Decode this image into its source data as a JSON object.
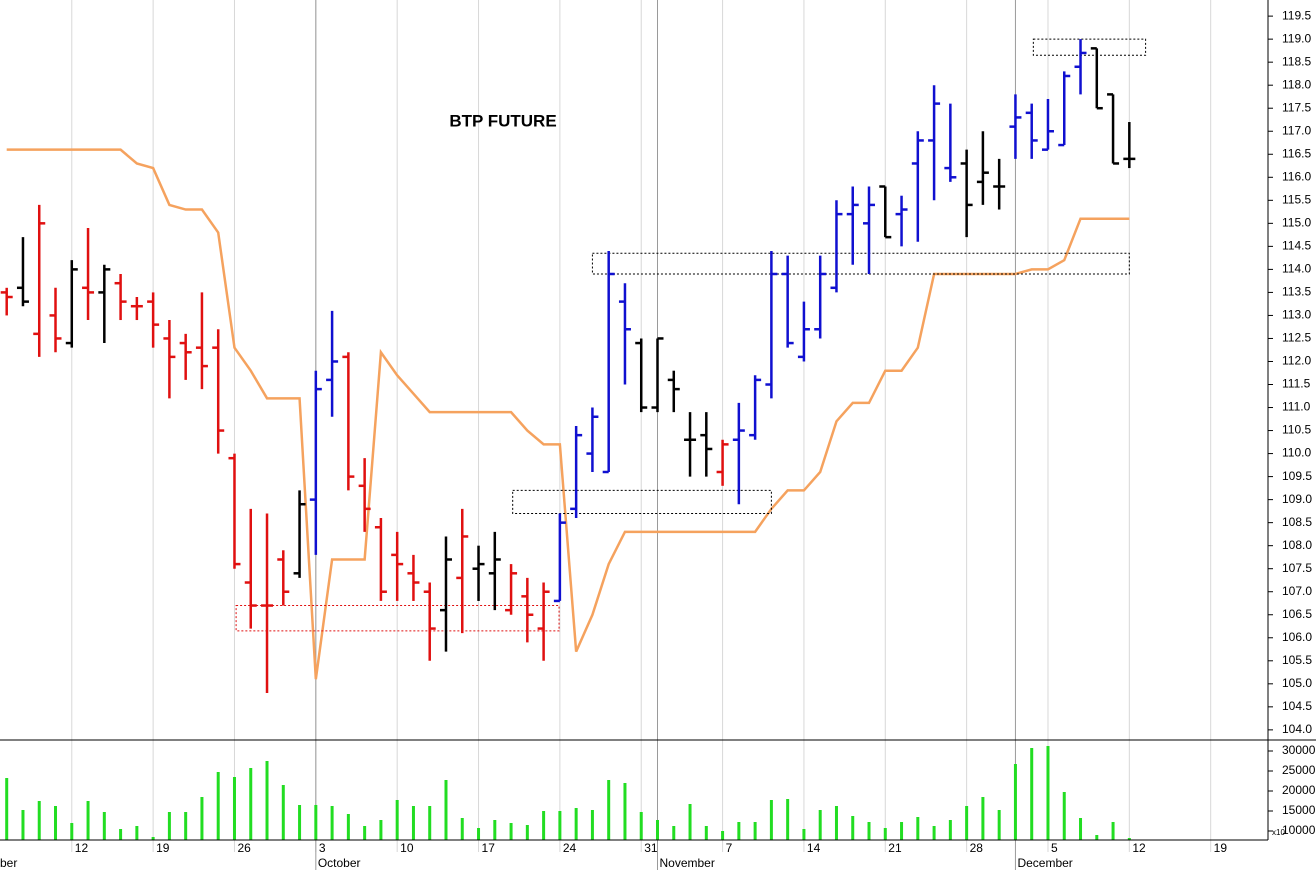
{
  "chart_data": [
    {
      "type": "ohlc",
      "title": "BTP FUTURE",
      "ylim": [
        103.78,
        119.85
      ],
      "yticks": [
        {
          "value": 104,
          "label": "104.0"
        },
        104.5,
        {
          "value": 105,
          "label": "105.0"
        },
        105.5,
        {
          "value": 106,
          "label": "106.0"
        },
        106.5,
        {
          "value": 107,
          "label": "107.0"
        },
        107.5,
        {
          "value": 108,
          "label": "108.0"
        },
        108.5,
        {
          "value": 109,
          "label": "109.0"
        },
        109.5,
        {
          "value": 110,
          "label": "110.0"
        },
        110.5,
        {
          "value": 111,
          "label": "111.0"
        },
        111.5,
        {
          "value": 112,
          "label": "112.0"
        },
        112.5,
        {
          "value": 113,
          "label": "113.0"
        },
        113.5,
        {
          "value": 114,
          "label": "114.0"
        },
        114.5,
        {
          "value": 115,
          "label": "115.0"
        },
        115.5,
        {
          "value": 116,
          "label": "116.0"
        },
        116.5,
        {
          "value": 117,
          "label": "117.0"
        },
        117.5,
        {
          "value": 118,
          "label": "118.0"
        },
        118.5,
        {
          "value": 119,
          "label": "119.0"
        },
        119.5
      ],
      "open": [
        113.5,
        113.6,
        112.6,
        113.0,
        112.4,
        113.6,
        113.5,
        113.7,
        113.2,
        113.3,
        112.5,
        112.4,
        112.3,
        112.3,
        109.9,
        107.2,
        106.7,
        107.7,
        107.4,
        109.0,
        111.6,
        112.1,
        109.3,
        108.4,
        107.8,
        107.4,
        107.0,
        106.6,
        107.3,
        107.5,
        107.4,
        106.6,
        106.9,
        106.2,
        106.8,
        108.8,
        110.0,
        109.6,
        113.3,
        112.4,
        111.0,
        111.6,
        110.3,
        110.4,
        109.6,
        110.3,
        110.4,
        111.5,
        113.9,
        112.1,
        112.7,
        113.6,
        115.2,
        115.0,
        115.8,
        115.2,
        116.3,
        116.8,
        116.2,
        116.3,
        115.9,
        115.8,
        117.1,
        117.4,
        116.6,
        116.7,
        118.4,
        118.8,
        117.8,
        116.4
      ],
      "high": [
        113.6,
        114.7,
        115.4,
        113.6,
        114.2,
        114.9,
        114.1,
        113.9,
        113.4,
        113.5,
        112.9,
        112.6,
        113.5,
        112.7,
        110.0,
        108.8,
        108.7,
        107.9,
        109.2,
        111.8,
        113.1,
        112.2,
        109.9,
        108.6,
        108.3,
        107.8,
        107.2,
        108.2,
        108.8,
        108.0,
        108.3,
        107.6,
        107.3,
        107.2,
        108.7,
        110.6,
        111.0,
        114.4,
        113.7,
        112.5,
        112.5,
        111.8,
        110.9,
        110.9,
        110.3,
        111.1,
        111.7,
        114.4,
        114.3,
        113.3,
        114.3,
        115.5,
        115.8,
        115.8,
        115.8,
        115.6,
        117.0,
        118.0,
        117.6,
        116.6,
        117.0,
        116.4,
        117.8,
        117.6,
        117.7,
        118.3,
        119.0,
        118.8,
        117.8,
        117.2
      ],
      "low": [
        113.0,
        113.2,
        112.1,
        112.2,
        112.3,
        112.9,
        112.4,
        112.9,
        112.9,
        112.3,
        111.2,
        111.6,
        111.4,
        110.0,
        107.5,
        106.2,
        104.8,
        106.7,
        107.3,
        107.8,
        110.8,
        109.2,
        108.3,
        106.8,
        106.8,
        106.8,
        105.5,
        105.7,
        106.1,
        106.8,
        106.6,
        106.5,
        105.9,
        105.5,
        106.8,
        108.6,
        109.6,
        109.6,
        111.5,
        110.9,
        110.9,
        110.9,
        109.5,
        109.5,
        109.3,
        108.9,
        110.3,
        111.2,
        112.3,
        112.0,
        112.5,
        113.5,
        114.1,
        113.9,
        114.7,
        114.5,
        114.6,
        115.5,
        115.9,
        114.7,
        115.4,
        115.3,
        116.4,
        116.4,
        116.6,
        116.7,
        117.8,
        117.5,
        116.3,
        116.2
      ],
      "close": [
        113.4,
        113.3,
        115.0,
        112.5,
        114.0,
        113.5,
        114.0,
        113.3,
        113.2,
        112.8,
        112.1,
        112.2,
        111.9,
        110.5,
        107.6,
        106.7,
        106.7,
        107.0,
        108.9,
        111.4,
        112.0,
        109.5,
        108.8,
        107.0,
        107.6,
        107.2,
        106.2,
        107.7,
        108.2,
        107.6,
        107.7,
        107.4,
        106.5,
        107.0,
        108.5,
        110.4,
        110.8,
        113.9,
        112.7,
        111.0,
        112.5,
        111.4,
        110.3,
        110.1,
        110.2,
        110.5,
        111.6,
        113.9,
        112.4,
        112.7,
        113.9,
        115.2,
        115.4,
        115.4,
        114.7,
        115.3,
        116.8,
        117.6,
        116.0,
        115.4,
        116.1,
        115.8,
        117.3,
        116.8,
        117.0,
        118.2,
        118.7,
        117.5,
        116.3,
        116.4
      ],
      "bar_colors": [
        "#e01010",
        "#000000",
        "#e01010",
        "#e01010",
        "#000000",
        "#e01010",
        "#000000",
        "#e01010",
        "#e01010",
        "#e01010",
        "#e01010",
        "#e01010",
        "#e01010",
        "#e01010",
        "#e01010",
        "#e01010",
        "#e01010",
        "#e01010",
        "#000000",
        "#1010d0",
        "#1010d0",
        "#e01010",
        "#e01010",
        "#e01010",
        "#e01010",
        "#e01010",
        "#e01010",
        "#000000",
        "#e01010",
        "#000000",
        "#000000",
        "#e01010",
        "#e01010",
        "#e01010",
        "#1010d0",
        "#1010d0",
        "#1010d0",
        "#1010d0",
        "#1010d0",
        "#000000",
        "#000000",
        "#000000",
        "#000000",
        "#000000",
        "#e01010",
        "#1010d0",
        "#1010d0",
        "#1010d0",
        "#1010d0",
        "#1010d0",
        "#1010d0",
        "#1010d0",
        "#1010d0",
        "#1010d0",
        "#000000",
        "#1010d0",
        "#1010d0",
        "#1010d0",
        "#1010d0",
        "#000000",
        "#000000",
        "#000000",
        "#1010d0",
        "#1010d0",
        "#1010d0",
        "#1010d0",
        "#1010d0",
        "#000000",
        "#000000",
        "#000000"
      ],
      "line": {
        "color": "#f5a25e",
        "values": [
          116.6,
          116.6,
          116.6,
          116.6,
          116.6,
          116.6,
          116.6,
          116.6,
          116.3,
          116.2,
          115.4,
          115.3,
          115.3,
          114.8,
          112.3,
          111.8,
          111.2,
          111.2,
          111.2,
          105.1,
          107.7,
          107.7,
          107.7,
          112.2,
          111.7,
          111.3,
          110.9,
          110.9,
          110.9,
          110.9,
          110.9,
          110.9,
          110.5,
          110.2,
          110.2,
          105.7,
          106.5,
          107.6,
          108.3,
          108.3,
          108.3,
          108.3,
          108.3,
          108.3,
          108.3,
          108.3,
          108.3,
          108.8,
          109.2,
          109.2,
          109.6,
          110.7,
          111.1,
          111.1,
          111.8,
          111.8,
          112.3,
          113.9,
          113.9,
          113.9,
          113.9,
          113.9,
          113.9,
          114.0,
          114.0,
          114.2,
          115.1,
          115.1,
          115.1,
          115.1
        ]
      },
      "boxes": [
        {
          "x": [
            63.1,
            70.0
          ],
          "y": [
            118.65,
            119.0
          ],
          "color": "#000000"
        },
        {
          "x": [
            36.0,
            69.0
          ],
          "y": [
            113.9,
            114.35
          ],
          "color": "#000000"
        },
        {
          "x": [
            31.1,
            47.0
          ],
          "y": [
            108.7,
            109.2
          ],
          "color": "#000000"
        },
        {
          "x": [
            14.1,
            33.95
          ],
          "y": [
            106.15,
            106.7
          ],
          "color": "#e01010"
        }
      ]
    },
    {
      "type": "bar",
      "color": "#22dd22",
      "ylim": [
        7750,
        32250
      ],
      "yticks": [
        10000,
        15000,
        20000,
        25000,
        30000
      ],
      "axis_note": "x10",
      "categories": [
        null,
        null,
        null,
        null,
        "12",
        null,
        null,
        null,
        null,
        "19",
        null,
        null,
        null,
        null,
        "26",
        null,
        null,
        null,
        null,
        "3",
        null,
        null,
        null,
        null,
        "10",
        null,
        null,
        null,
        null,
        "17",
        null,
        null,
        null,
        null,
        "24",
        null,
        null,
        null,
        null,
        "31",
        null,
        null,
        null,
        null,
        "7",
        null,
        null,
        null,
        null,
        "14",
        null,
        null,
        null,
        null,
        "21",
        null,
        null,
        null,
        null,
        "28",
        null,
        null,
        null,
        null,
        "5",
        null,
        null,
        null,
        null,
        "12",
        null,
        null,
        null,
        null,
        "19",
        null,
        null,
        null
      ],
      "month_labels": [
        "ber",
        null,
        null,
        null,
        null,
        null,
        null,
        null,
        null,
        null,
        null,
        null,
        null,
        null,
        null,
        null,
        null,
        null,
        null,
        "October",
        null,
        null,
        null,
        null,
        null,
        null,
        null,
        null,
        null,
        null,
        null,
        null,
        null,
        null,
        null,
        null,
        null,
        null,
        null,
        null,
        "November",
        null,
        null,
        null,
        null,
        null,
        null,
        null,
        null,
        null,
        null,
        null,
        null,
        null,
        null,
        null,
        null,
        null,
        null,
        null,
        null,
        null,
        "December",
        null,
        null,
        null,
        null,
        null,
        null,
        null,
        null,
        null,
        null,
        null,
        null,
        null,
        null,
        null
      ],
      "values": [
        23250,
        15250,
        17500,
        16250,
        12000,
        17500,
        14750,
        10500,
        11250,
        8500,
        14750,
        14750,
        18500,
        24750,
        23500,
        25750,
        27500,
        21500,
        16500,
        16500,
        16250,
        14250,
        11250,
        12750,
        17750,
        16250,
        16250,
        22750,
        13250,
        10750,
        12750,
        12000,
        11500,
        15000,
        15000,
        15750,
        15250,
        22750,
        22000,
        14750,
        12750,
        11250,
        16750,
        11250,
        10000,
        12250,
        12250,
        17750,
        18000,
        10500,
        15250,
        16250,
        13750,
        12250,
        10750,
        12250,
        13500,
        11250,
        12750,
        16250,
        18500,
        15250,
        26750,
        30750,
        31250,
        19750,
        13250,
        9000,
        12250,
        8250,
        null,
        null,
        null,
        null,
        null,
        null,
        null,
        null
      ]
    }
  ]
}
